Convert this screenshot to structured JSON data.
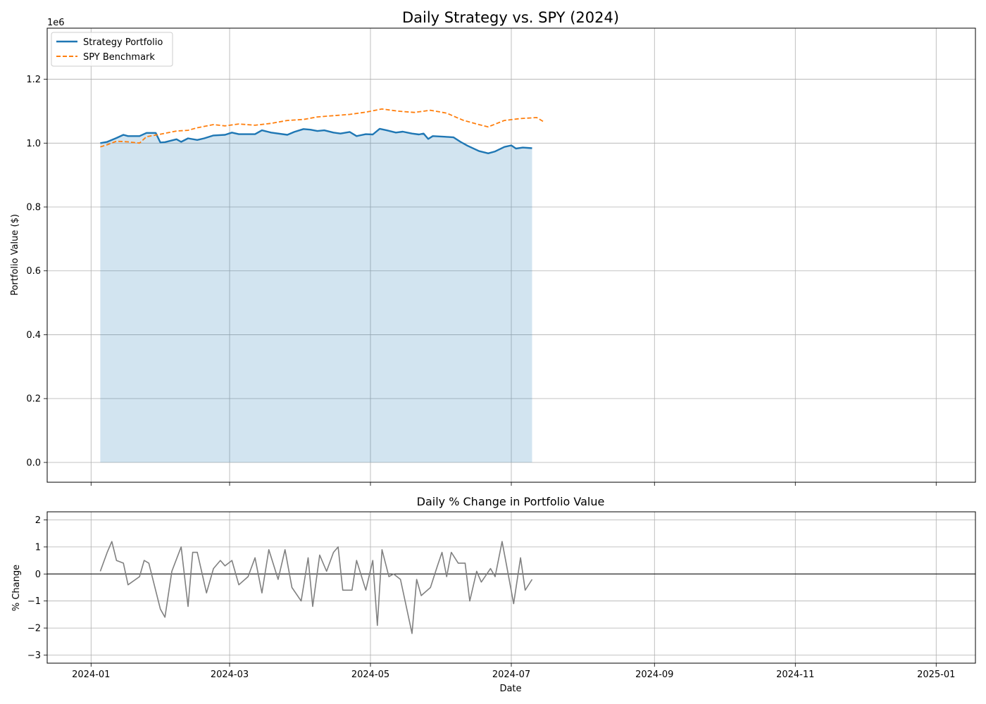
{
  "figure": {
    "colors": {
      "strategy": "#1f77b4",
      "spy": "#ff7f0e",
      "fill": "#1f77b4",
      "pct": "#808080",
      "grid": "#b0b0b0"
    }
  },
  "chart_data": [
    {
      "type": "line",
      "title": "Daily Strategy vs. SPY (2024)",
      "xlabel": "",
      "ylabel": "Portfolio Value ($)",
      "y_offset_label": "1e6",
      "y_scale": 1000000,
      "xlim": [
        "2023-12-13",
        "2025-01-18"
      ],
      "ylim": [
        -62000,
        1360000
      ],
      "x_ticks": [
        "2024-01",
        "2024-03",
        "2024-05",
        "2024-07",
        "2024-09",
        "2024-11",
        "2025-01"
      ],
      "y_ticks": [
        "0.0",
        "0.2",
        "0.4",
        "0.6",
        "0.8",
        "1.0",
        "1.2"
      ],
      "grid": true,
      "legend_position": "upper left",
      "fill_under_series": "Strategy Portfolio",
      "series": [
        {
          "name": "Strategy Portfolio",
          "style": "solid",
          "points": [
            [
              "2024-01-05",
              1000000
            ],
            [
              "2024-01-08",
              1004000
            ],
            [
              "2024-01-12",
              1016000
            ],
            [
              "2024-01-15",
              1026000
            ],
            [
              "2024-01-17",
              1022000
            ],
            [
              "2024-01-22",
              1022000
            ],
            [
              "2024-01-25",
              1032000
            ],
            [
              "2024-01-29",
              1032000
            ],
            [
              "2024-01-31",
              1002000
            ],
            [
              "2024-02-02",
              1003000
            ],
            [
              "2024-02-07",
              1012000
            ],
            [
              "2024-02-09",
              1004000
            ],
            [
              "2024-02-12",
              1015000
            ],
            [
              "2024-02-16",
              1010000
            ],
            [
              "2024-02-19",
              1015000
            ],
            [
              "2024-02-23",
              1024000
            ],
            [
              "2024-02-28",
              1026000
            ],
            [
              "2024-03-02",
              1033000
            ],
            [
              "2024-03-05",
              1028000
            ],
            [
              "2024-03-12",
              1028000
            ],
            [
              "2024-03-15",
              1040000
            ],
            [
              "2024-03-19",
              1033000
            ],
            [
              "2024-03-26",
              1026000
            ],
            [
              "2024-03-29",
              1035000
            ],
            [
              "2024-04-02",
              1044000
            ],
            [
              "2024-04-05",
              1042000
            ],
            [
              "2024-04-08",
              1038000
            ],
            [
              "2024-04-11",
              1040000
            ],
            [
              "2024-04-15",
              1033000
            ],
            [
              "2024-04-18",
              1030000
            ],
            [
              "2024-04-22",
              1035000
            ],
            [
              "2024-04-25",
              1022000
            ],
            [
              "2024-04-29",
              1028000
            ],
            [
              "2024-05-02",
              1027000
            ],
            [
              "2024-05-05",
              1045000
            ],
            [
              "2024-05-08",
              1040000
            ],
            [
              "2024-05-12",
              1033000
            ],
            [
              "2024-05-15",
              1036000
            ],
            [
              "2024-05-19",
              1030000
            ],
            [
              "2024-05-22",
              1027000
            ],
            [
              "2024-05-24",
              1030000
            ],
            [
              "2024-05-26",
              1013000
            ],
            [
              "2024-05-28",
              1022000
            ],
            [
              "2024-06-02",
              1020000
            ],
            [
              "2024-06-06",
              1018000
            ],
            [
              "2024-06-09",
              1004000
            ],
            [
              "2024-06-12",
              992000
            ],
            [
              "2024-06-17",
              975000
            ],
            [
              "2024-06-21",
              968000
            ],
            [
              "2024-06-24",
              974000
            ],
            [
              "2024-06-28",
              988000
            ],
            [
              "2024-07-01",
              993000
            ],
            [
              "2024-07-03",
              983000
            ],
            [
              "2024-07-06",
              986000
            ],
            [
              "2024-07-10",
              984000
            ]
          ]
        },
        {
          "name": "SPY Benchmark",
          "style": "dashed",
          "points": [
            [
              "2024-01-05",
              988000
            ],
            [
              "2024-01-08",
              995000
            ],
            [
              "2024-01-12",
              1006000
            ],
            [
              "2024-01-17",
              1004000
            ],
            [
              "2024-01-22",
              1000000
            ],
            [
              "2024-01-25",
              1020000
            ],
            [
              "2024-01-31",
              1028000
            ],
            [
              "2024-02-07",
              1038000
            ],
            [
              "2024-02-12",
              1040000
            ],
            [
              "2024-02-16",
              1048000
            ],
            [
              "2024-02-23",
              1058000
            ],
            [
              "2024-02-28",
              1054000
            ],
            [
              "2024-03-05",
              1060000
            ],
            [
              "2024-03-12",
              1056000
            ],
            [
              "2024-03-19",
              1062000
            ],
            [
              "2024-03-26",
              1071000
            ],
            [
              "2024-04-02",
              1074000
            ],
            [
              "2024-04-08",
              1082000
            ],
            [
              "2024-04-15",
              1086000
            ],
            [
              "2024-04-22",
              1090000
            ],
            [
              "2024-04-29",
              1097000
            ],
            [
              "2024-05-06",
              1107000
            ],
            [
              "2024-05-13",
              1100000
            ],
            [
              "2024-05-20",
              1096000
            ],
            [
              "2024-05-27",
              1103000
            ],
            [
              "2024-06-03",
              1094000
            ],
            [
              "2024-06-10",
              1072000
            ],
            [
              "2024-06-17",
              1058000
            ],
            [
              "2024-06-21",
              1051000
            ],
            [
              "2024-06-28",
              1071000
            ],
            [
              "2024-07-05",
              1077000
            ],
            [
              "2024-07-12",
              1080000
            ],
            [
              "2024-07-15",
              1067000
            ]
          ]
        }
      ]
    },
    {
      "type": "line",
      "title": "Daily % Change in Portfolio Value",
      "xlabel": "Date",
      "ylabel": "% Change",
      "xlim": [
        "2023-12-13",
        "2025-01-18"
      ],
      "ylim": [
        -3.3,
        2.3
      ],
      "x_ticks": [
        "2024-01",
        "2024-03",
        "2024-05",
        "2024-07",
        "2024-09",
        "2024-11",
        "2025-01"
      ],
      "y_ticks": [
        "2",
        "1",
        "0",
        "−1",
        "−2",
        "−3"
      ],
      "grid": true,
      "zero_line": true,
      "series": [
        {
          "name": "",
          "points": [
            [
              "2024-01-05",
              0.1
            ],
            [
              "2024-01-08",
              0.8
            ],
            [
              "2024-01-10",
              1.2
            ],
            [
              "2024-01-12",
              0.5
            ],
            [
              "2024-01-15",
              0.4
            ],
            [
              "2024-01-17",
              -0.4
            ],
            [
              "2024-01-22",
              -0.1
            ],
            [
              "2024-01-24",
              0.5
            ],
            [
              "2024-01-26",
              0.4
            ],
            [
              "2024-01-31",
              -1.3
            ],
            [
              "2024-02-02",
              -1.6
            ],
            [
              "2024-02-05",
              0.1
            ],
            [
              "2024-02-09",
              1.0
            ],
            [
              "2024-02-12",
              -1.2
            ],
            [
              "2024-02-14",
              0.8
            ],
            [
              "2024-02-16",
              0.8
            ],
            [
              "2024-02-20",
              -0.7
            ],
            [
              "2024-02-23",
              0.2
            ],
            [
              "2024-02-26",
              0.5
            ],
            [
              "2024-02-28",
              0.3
            ],
            [
              "2024-03-02",
              0.5
            ],
            [
              "2024-03-05",
              -0.4
            ],
            [
              "2024-03-09",
              -0.1
            ],
            [
              "2024-03-12",
              0.6
            ],
            [
              "2024-03-15",
              -0.7
            ],
            [
              "2024-03-18",
              0.9
            ],
            [
              "2024-03-22",
              -0.2
            ],
            [
              "2024-03-25",
              0.9
            ],
            [
              "2024-03-28",
              -0.5
            ],
            [
              "2024-04-01",
              -1.0
            ],
            [
              "2024-04-04",
              0.6
            ],
            [
              "2024-04-06",
              -1.2
            ],
            [
              "2024-04-09",
              0.7
            ],
            [
              "2024-04-12",
              0.1
            ],
            [
              "2024-04-15",
              0.8
            ],
            [
              "2024-04-17",
              1.0
            ],
            [
              "2024-04-19",
              -0.6
            ],
            [
              "2024-04-23",
              -0.6
            ],
            [
              "2024-04-25",
              0.5
            ],
            [
              "2024-04-29",
              -0.6
            ],
            [
              "2024-05-02",
              0.5
            ],
            [
              "2024-05-04",
              -1.9
            ],
            [
              "2024-05-06",
              0.9
            ],
            [
              "2024-05-09",
              -0.1
            ],
            [
              "2024-05-11",
              0.0
            ],
            [
              "2024-05-14",
              -0.2
            ],
            [
              "2024-05-16",
              -1.0
            ],
            [
              "2024-05-19",
              -2.2
            ],
            [
              "2024-05-21",
              -0.2
            ],
            [
              "2024-05-23",
              -0.8
            ],
            [
              "2024-05-27",
              -0.5
            ],
            [
              "2024-05-30",
              0.3
            ],
            [
              "2024-06-01",
              0.8
            ],
            [
              "2024-06-03",
              -0.1
            ],
            [
              "2024-06-05",
              0.8
            ],
            [
              "2024-06-08",
              0.4
            ],
            [
              "2024-06-11",
              0.4
            ],
            [
              "2024-06-13",
              -1.0
            ],
            [
              "2024-06-16",
              0.1
            ],
            [
              "2024-06-18",
              -0.3
            ],
            [
              "2024-06-22",
              0.2
            ],
            [
              "2024-06-24",
              -0.1
            ],
            [
              "2024-06-27",
              1.2
            ],
            [
              "2024-06-29",
              0.3
            ],
            [
              "2024-07-02",
              -1.1
            ],
            [
              "2024-07-05",
              0.6
            ],
            [
              "2024-07-07",
              -0.6
            ],
            [
              "2024-07-10",
              -0.2
            ]
          ]
        }
      ]
    }
  ]
}
